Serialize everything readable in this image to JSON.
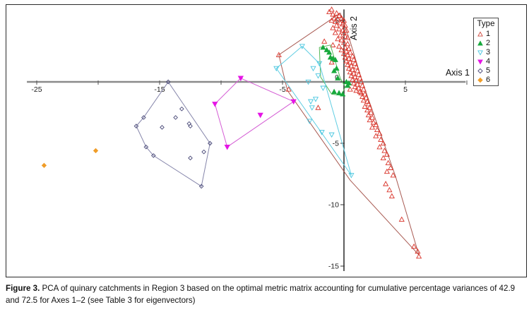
{
  "figure": {
    "caption_bold": "Figure 3.",
    "caption_rest": " PCA of quinary catchments in Region 3 based on the optimal metric matrix accounting for cumulative percentage variances of 42.9 and 72.5 for Axes 1–2 (see Table 3 for eigenvectors)"
  },
  "chart_data": {
    "type": "scatter",
    "title": "",
    "xlabel": "Axis 1",
    "ylabel": "Axis 2",
    "x_axis_range": [
      -25.8,
      9.9
    ],
    "y_axis_range": [
      -15.4,
      5.9
    ],
    "x_ticks_labeled": [
      -25,
      -15,
      -5,
      5
    ],
    "x_ticks_minor": [
      -20,
      -10,
      0,
      10
    ],
    "y_ticks_labeled": [
      5,
      0,
      -5,
      -10,
      -15
    ],
    "grid": "off",
    "axis_colors": {
      "x_axis": "#8a8a8a",
      "y_axis": "#1a1a1a",
      "tick_text": "#222222"
    },
    "legend": {
      "title": "Type",
      "position": "top-right",
      "entries": [
        {
          "label": "1",
          "marker": "tri-up",
          "fill": "open",
          "color": "#cf4a3f"
        },
        {
          "label": "2",
          "marker": "tri-up",
          "fill": "solid",
          "color": "#17a93c"
        },
        {
          "label": "3",
          "marker": "tri-down",
          "fill": "open",
          "color": "#49c6e0"
        },
        {
          "label": "4",
          "marker": "tri-down",
          "fill": "solid",
          "color": "#e515e5"
        },
        {
          "label": "5",
          "marker": "diamond",
          "fill": "open",
          "color": "#4a4a78"
        },
        {
          "label": "6",
          "marker": "diamond",
          "fill": "solid",
          "color": "#f09d28"
        }
      ]
    },
    "series": [
      {
        "name": "1",
        "marker": "tri-up",
        "fill": "open",
        "size": 3.3,
        "color": "#d93228",
        "hull_color": "#a85a52",
        "hull": [
          [
            -0.3,
            5.6
          ],
          [
            0.5,
            3.3
          ],
          [
            1.5,
            0.0
          ],
          [
            4.2,
            -7.7
          ],
          [
            6.1,
            -14.1
          ],
          [
            0.5,
            -8.0
          ],
          [
            -4.6,
            -0.7
          ],
          [
            -5.3,
            2.2
          ]
        ],
        "points": [
          [
            -1.2,
            5.7
          ],
          [
            -0.9,
            5.5
          ],
          [
            -0.6,
            5.6
          ],
          [
            -0.4,
            5.4
          ],
          [
            -0.8,
            5.2
          ],
          [
            -0.5,
            5.1
          ],
          [
            -0.2,
            5.2
          ],
          [
            0,
            5
          ],
          [
            -1,
            5
          ],
          [
            -0.7,
            4.9
          ],
          [
            -0.3,
            4.8
          ],
          [
            -0.1,
            4.7
          ],
          [
            0.1,
            4.6
          ],
          [
            -0.6,
            4.6
          ],
          [
            -0.9,
            4.4
          ],
          [
            -0.4,
            4.3
          ],
          [
            -0.1,
            4.2
          ],
          [
            0.2,
            4.2
          ],
          [
            0,
            4
          ],
          [
            -0.7,
            4
          ],
          [
            -0.3,
            3.8
          ],
          [
            0.1,
            3.7
          ],
          [
            0.3,
            3.6
          ],
          [
            -0.5,
            3.5
          ],
          [
            -0.2,
            3.4
          ],
          [
            0,
            3.2
          ],
          [
            0.3,
            3.1
          ],
          [
            -0.9,
            3
          ],
          [
            -0.4,
            2.9
          ],
          [
            0.1,
            2.8
          ],
          [
            0.4,
            2.7
          ],
          [
            -0.2,
            2.6
          ],
          [
            -1.6,
            3.3
          ],
          [
            -1,
            1.6
          ],
          [
            0.2,
            2.5
          ],
          [
            0.5,
            2.4
          ],
          [
            0,
            2.3
          ],
          [
            0.3,
            2.2
          ],
          [
            0.7,
            2.1
          ],
          [
            0.1,
            2
          ],
          [
            0.4,
            1.9
          ],
          [
            0.8,
            1.8
          ],
          [
            0.2,
            1.7
          ],
          [
            0.5,
            1.6
          ],
          [
            0.9,
            1.5
          ],
          [
            0.3,
            1.4
          ],
          [
            0.6,
            1.3
          ],
          [
            1,
            1.2
          ],
          [
            0.4,
            1.1
          ],
          [
            0.7,
            1
          ],
          [
            1.1,
            0.9
          ],
          [
            0.5,
            0.8
          ],
          [
            0.8,
            0.7
          ],
          [
            1.2,
            0.6
          ],
          [
            0.6,
            0.5
          ],
          [
            0.9,
            0.4
          ],
          [
            1.3,
            0.3
          ],
          [
            0.7,
            0.2
          ],
          [
            1,
            0.1
          ],
          [
            1.4,
            0
          ],
          [
            0.8,
            -0.1
          ],
          [
            1.1,
            -0.2
          ],
          [
            1.5,
            -0.3
          ],
          [
            0.9,
            -0.4
          ],
          [
            1.2,
            -0.5
          ],
          [
            0.5,
            -0.6
          ],
          [
            1.6,
            -0.6
          ],
          [
            1,
            -0.7
          ],
          [
            1.3,
            -0.8
          ],
          [
            1.4,
            -0.9
          ],
          [
            1.7,
            -1
          ],
          [
            1.5,
            -1.2
          ],
          [
            1.8,
            -1.3
          ],
          [
            1.6,
            -1.5
          ],
          [
            1.9,
            -1.6
          ],
          [
            2,
            -1.8
          ],
          [
            1.7,
            -2
          ],
          [
            2.1,
            -2.1
          ],
          [
            1.9,
            -2.3
          ],
          [
            2.2,
            -2.5
          ],
          [
            2,
            -2.7
          ],
          [
            2.3,
            -2.9
          ],
          [
            2.1,
            -3.1
          ],
          [
            2.4,
            -3.3
          ],
          [
            2.6,
            -3.5
          ],
          [
            2.3,
            -3.7
          ],
          [
            2.7,
            -3.9
          ],
          [
            2.9,
            -4.2
          ],
          [
            2.6,
            -4.4
          ],
          [
            3,
            -4.7
          ],
          [
            3.2,
            -5
          ],
          [
            2.9,
            -5.3
          ],
          [
            3.3,
            -5.6
          ],
          [
            3.5,
            -5.9
          ],
          [
            3.2,
            -6.2
          ],
          [
            3.6,
            -6.6
          ],
          [
            3.8,
            -7
          ],
          [
            3.5,
            -7.3
          ],
          [
            4,
            -7.6
          ],
          [
            -2.1,
            -2.1
          ],
          [
            3.4,
            -8.3
          ],
          [
            3.7,
            -8.8
          ],
          [
            3.9,
            -9.3
          ],
          [
            4.7,
            -11.2
          ],
          [
            5.7,
            -13.4
          ],
          [
            6,
            -13.8
          ],
          [
            6.1,
            -14.2
          ],
          [
            -4.5,
            -0.6
          ],
          [
            -5.3,
            2.2
          ],
          [
            -1,
            5.9
          ]
        ]
      },
      {
        "name": "2",
        "marker": "tri-up",
        "fill": "solid",
        "size": 3.3,
        "color": "#17a93c",
        "hull_color": "#55b858",
        "hull": [
          [
            -2.0,
            2.8
          ],
          [
            -1.1,
            3.0
          ],
          [
            -0.3,
            0.3
          ],
          [
            0.1,
            -0.4
          ],
          [
            -0.2,
            -1.1
          ],
          [
            -1.0,
            -1.0
          ],
          [
            -1.9,
            0.4
          ]
        ],
        "points": [
          [
            -1.7,
            2.8
          ],
          [
            -1.4,
            2.6
          ],
          [
            -1.2,
            2.4
          ],
          [
            -1.1,
            2.0
          ],
          [
            -0.9,
            1.9
          ],
          [
            -0.7,
            1.8
          ],
          [
            -0.6,
            1.1
          ],
          [
            -0.8,
            0.9
          ],
          [
            -0.5,
            0.3
          ],
          [
            -0.8,
            -0.8
          ],
          [
            -0.4,
            -0.9
          ],
          [
            -0.1,
            -1.0
          ],
          [
            0.2,
            0.0
          ],
          [
            0.4,
            -0.1
          ],
          [
            0.3,
            -0.3
          ]
        ]
      },
      {
        "name": "3",
        "marker": "tri-down",
        "fill": "open",
        "size": 3.3,
        "color": "#49c6e0",
        "hull_color": "#5fcde2",
        "hull": [
          [
            -3.4,
            2.9
          ],
          [
            -2.0,
            1.5
          ],
          [
            0.6,
            -7.6
          ],
          [
            -5.5,
            1.1
          ]
        ],
        "points": [
          [
            -3.4,
            2.9
          ],
          [
            -5.5,
            1.1
          ],
          [
            -2.0,
            1.5
          ],
          [
            -2.5,
            1.1
          ],
          [
            -2.1,
            0.5
          ],
          [
            -2.9,
            0.0
          ],
          [
            -1.7,
            -0.5
          ],
          [
            -2.3,
            -1.4
          ],
          [
            -2.7,
            -1.6
          ],
          [
            -2.6,
            -2.1
          ],
          [
            -2.8,
            -3.2
          ],
          [
            -1.8,
            -4.1
          ],
          [
            -1.0,
            -4.3
          ],
          [
            0.6,
            -7.6
          ]
        ]
      },
      {
        "name": "4",
        "marker": "tri-down",
        "fill": "solid",
        "size": 3.4,
        "color": "#e515e5",
        "hull_color": "#d45cd4",
        "hull": [
          [
            -8.4,
            0.3
          ],
          [
            -4.1,
            -1.6
          ],
          [
            -9.5,
            -5.3
          ],
          [
            -10.5,
            -1.8
          ]
        ],
        "points": [
          [
            -8.4,
            0.3
          ],
          [
            -10.5,
            -1.8
          ],
          [
            -9.5,
            -5.3
          ],
          [
            -4.1,
            -1.6
          ],
          [
            -6.8,
            -2.7
          ]
        ]
      },
      {
        "name": "5",
        "marker": "diamond",
        "fill": "open",
        "size": 2.7,
        "color": "#4a4a78",
        "hull_color": "#8585aa",
        "hull": [
          [
            -14.3,
            0.0
          ],
          [
            -10.9,
            -5.0
          ],
          [
            -11.6,
            -8.5
          ],
          [
            -15.5,
            -6.0
          ],
          [
            -16.1,
            -5.3
          ],
          [
            -16.9,
            -3.6
          ],
          [
            -16.3,
            -2.9
          ]
        ],
        "points": [
          [
            -14.3,
            0.0
          ],
          [
            -10.9,
            -5.0
          ],
          [
            -11.6,
            -8.5
          ],
          [
            -15.5,
            -6.0
          ],
          [
            -16.1,
            -5.3
          ],
          [
            -16.9,
            -3.6
          ],
          [
            -16.3,
            -2.9
          ],
          [
            -13.2,
            -2.2
          ],
          [
            -13.7,
            -2.9
          ],
          [
            -12.6,
            -3.4
          ],
          [
            -12.5,
            -3.6
          ],
          [
            -14.8,
            -3.7
          ],
          [
            -11.4,
            -5.7
          ],
          [
            -12.5,
            -6.2
          ]
        ]
      },
      {
        "name": "6",
        "marker": "diamond",
        "fill": "solid",
        "size": 3.0,
        "color": "#f09d28",
        "hull_color": "#f09d28",
        "hull": [],
        "points": [
          [
            -24.4,
            -6.8
          ],
          [
            -20.2,
            -5.6
          ]
        ]
      }
    ]
  }
}
